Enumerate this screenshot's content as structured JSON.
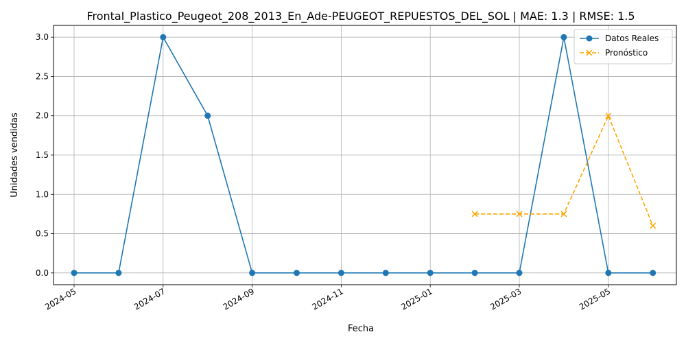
{
  "chart_data": {
    "type": "line",
    "title": "Frontal_Plastico_Peugeot_208_2013_En_Ade-PEUGEOT_REPUESTOS_DEL_SOL | MAE: 1.3 | RMSE: 1.5",
    "xlabel": "Fecha",
    "ylabel": "Unidades vendidas",
    "ylim": [
      -0.15,
      3.15
    ],
    "grid": true,
    "legend_position": "top-right",
    "x_ticks": [
      "2024-05",
      "2024-07",
      "2024-09",
      "2024-11",
      "2025-01",
      "2025-03",
      "2025-05"
    ],
    "y_ticks": [
      "0.0",
      "0.5",
      "1.0",
      "1.5",
      "2.0",
      "2.5",
      "3.0"
    ],
    "series": [
      {
        "name": "Datos Reales",
        "color": "#1f77b4",
        "marker": "circle",
        "line_style": "solid",
        "x": [
          "2024-05",
          "2024-06",
          "2024-07",
          "2024-08",
          "2024-09",
          "2024-10",
          "2024-11",
          "2024-12",
          "2025-01",
          "2025-02",
          "2025-03",
          "2025-04",
          "2025-05",
          "2025-06"
        ],
        "values": [
          0,
          0,
          3,
          2,
          0,
          0,
          0,
          0,
          0,
          0,
          0,
          3,
          0,
          0
        ]
      },
      {
        "name": "Pronóstico",
        "color": "#ffa500",
        "marker": "x",
        "line_style": "dashed",
        "x": [
          "2025-02",
          "2025-03",
          "2025-04",
          "2025-05",
          "2025-06"
        ],
        "values": [
          0.75,
          0.75,
          0.75,
          2.0,
          0.6
        ]
      }
    ]
  }
}
